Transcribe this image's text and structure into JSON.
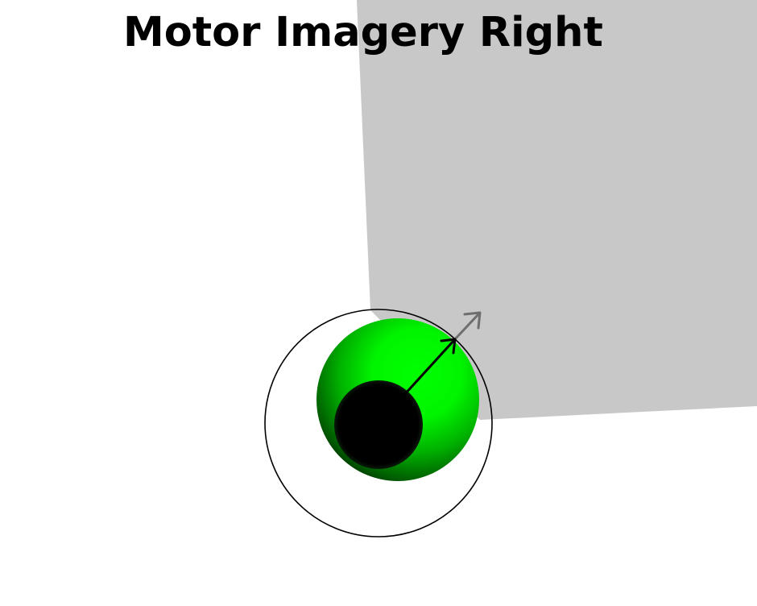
{
  "title": "Motor Imagery Right",
  "colors": {
    "background": "#ffffff",
    "panel": "#c8c8c8",
    "ball_light": "#00ff00",
    "ball_dark": "#000000",
    "ring": "#000000",
    "arrow_inner": "#000000",
    "arrow_outer": "#6e6e6e",
    "title": "#000000"
  },
  "icons": {
    "target_ring": "circle-outline",
    "ball": "shaded-sphere",
    "direction": "arrow-up-right"
  }
}
